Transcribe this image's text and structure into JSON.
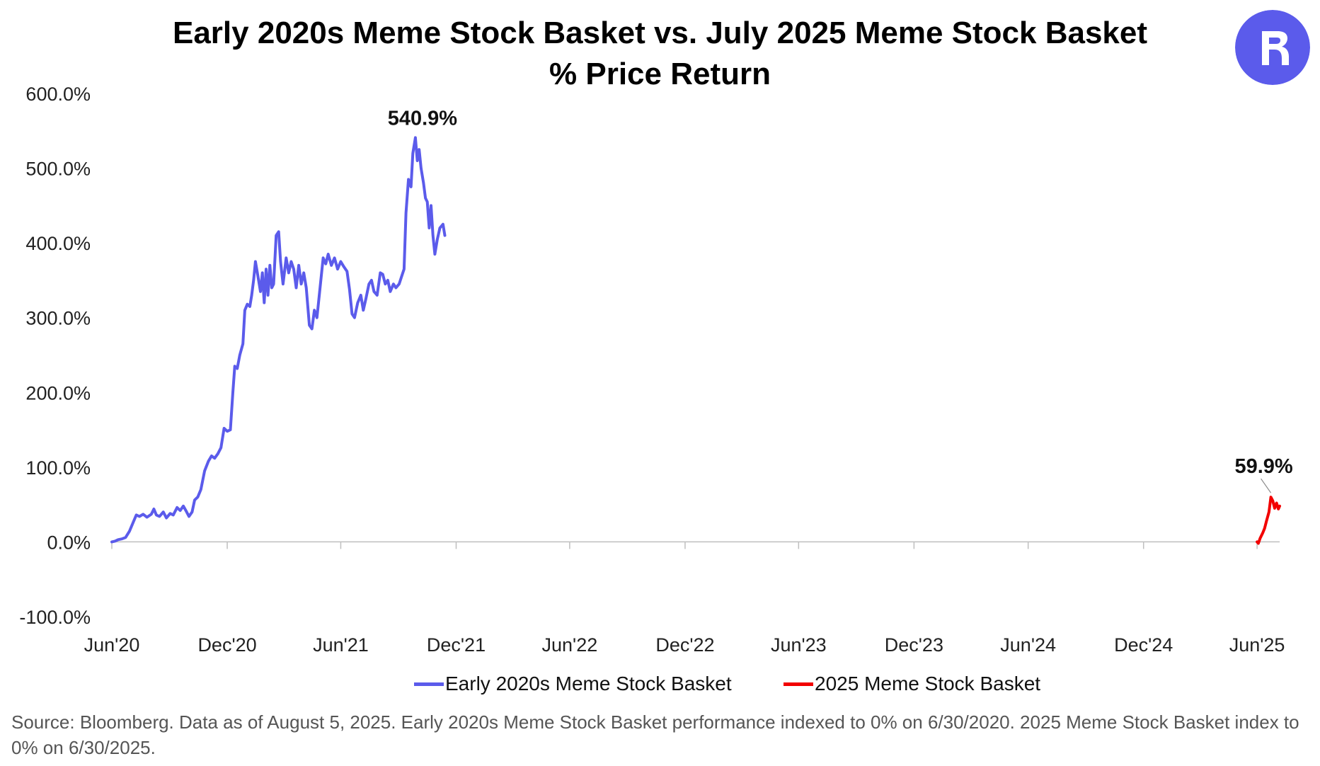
{
  "chart_data": {
    "type": "line",
    "title": "Early 2020s Meme Stock Basket vs. July 2025 Meme Stock Basket",
    "subtitle": "% Price Return",
    "xlabel": "",
    "ylabel": "",
    "x_range": [
      "2020-06-30",
      "2025-08-05"
    ],
    "ylim": [
      -100,
      600
    ],
    "yticks": [
      "600.0%",
      "500.0%",
      "400.0%",
      "300.0%",
      "200.0%",
      "100.0%",
      "0.0%",
      "-100.0%"
    ],
    "ytick_values": [
      600,
      500,
      400,
      300,
      200,
      100,
      0,
      -100
    ],
    "xticks": [
      "Jun'20",
      "Dec'20",
      "Jun'21",
      "Dec'21",
      "Jun'22",
      "Dec'22",
      "Jun'23",
      "Dec'23",
      "Jun'24",
      "Dec'24",
      "Jun'25"
    ],
    "xtick_dates": [
      "2020-06-30",
      "2020-12-31",
      "2021-06-30",
      "2021-12-31",
      "2022-06-30",
      "2022-12-31",
      "2023-06-30",
      "2023-12-31",
      "2024-06-30",
      "2024-12-31",
      "2025-06-30"
    ],
    "grid": false,
    "legend_position": "bottom",
    "series": [
      {
        "name": "Early 2020s Meme Stock Basket",
        "color": "#5B5BEB",
        "points": [
          [
            "2020-06-30",
            0
          ],
          [
            "2020-07-05",
            1
          ],
          [
            "2020-07-10",
            3
          ],
          [
            "2020-07-16",
            4
          ],
          [
            "2020-07-22",
            6
          ],
          [
            "2020-07-28",
            14
          ],
          [
            "2020-08-04",
            28
          ],
          [
            "2020-08-08",
            36
          ],
          [
            "2020-08-13",
            34
          ],
          [
            "2020-08-19",
            37
          ],
          [
            "2020-08-25",
            33
          ],
          [
            "2020-09-01",
            37
          ],
          [
            "2020-09-05",
            44
          ],
          [
            "2020-09-09",
            36
          ],
          [
            "2020-09-14",
            34
          ],
          [
            "2020-09-20",
            40
          ],
          [
            "2020-09-25",
            32
          ],
          [
            "2020-10-01",
            38
          ],
          [
            "2020-10-06",
            36
          ],
          [
            "2020-10-12",
            46
          ],
          [
            "2020-10-17",
            42
          ],
          [
            "2020-10-22",
            48
          ],
          [
            "2020-10-26",
            42
          ],
          [
            "2020-10-31",
            34
          ],
          [
            "2020-11-05",
            40
          ],
          [
            "2020-11-09",
            56
          ],
          [
            "2020-11-14",
            60
          ],
          [
            "2020-11-19",
            70
          ],
          [
            "2020-11-25",
            95
          ],
          [
            "2020-12-01",
            108
          ],
          [
            "2020-12-06",
            115
          ],
          [
            "2020-12-11",
            112
          ],
          [
            "2020-12-16",
            118
          ],
          [
            "2020-12-21",
            126
          ],
          [
            "2020-12-26",
            152
          ],
          [
            "2020-12-31",
            148
          ],
          [
            "2021-01-05",
            150
          ],
          [
            "2021-01-09",
            200
          ],
          [
            "2021-01-12",
            235
          ],
          [
            "2021-01-16",
            232
          ],
          [
            "2021-01-20",
            250
          ],
          [
            "2021-01-25",
            265
          ],
          [
            "2021-01-28",
            310
          ],
          [
            "2021-02-01",
            318
          ],
          [
            "2021-02-05",
            315
          ],
          [
            "2021-02-08",
            330
          ],
          [
            "2021-02-11",
            350
          ],
          [
            "2021-02-14",
            375
          ],
          [
            "2021-02-18",
            355
          ],
          [
            "2021-02-22",
            335
          ],
          [
            "2021-02-25",
            360
          ],
          [
            "2021-02-28",
            320
          ],
          [
            "2021-03-03",
            365
          ],
          [
            "2021-03-06",
            330
          ],
          [
            "2021-03-09",
            370
          ],
          [
            "2021-03-12",
            340
          ],
          [
            "2021-03-15",
            345
          ],
          [
            "2021-03-19",
            410
          ],
          [
            "2021-03-23",
            415
          ],
          [
            "2021-03-26",
            375
          ],
          [
            "2021-03-30",
            345
          ],
          [
            "2021-04-04",
            380
          ],
          [
            "2021-04-08",
            360
          ],
          [
            "2021-04-12",
            375
          ],
          [
            "2021-04-16",
            365
          ],
          [
            "2021-04-20",
            340
          ],
          [
            "2021-04-24",
            370
          ],
          [
            "2021-04-28",
            345
          ],
          [
            "2021-05-02",
            360
          ],
          [
            "2021-05-06",
            340
          ],
          [
            "2021-05-11",
            290
          ],
          [
            "2021-05-15",
            285
          ],
          [
            "2021-05-19",
            310
          ],
          [
            "2021-05-23",
            300
          ],
          [
            "2021-05-28",
            340
          ],
          [
            "2021-06-02",
            380
          ],
          [
            "2021-06-06",
            372
          ],
          [
            "2021-06-10",
            385
          ],
          [
            "2021-06-15",
            370
          ],
          [
            "2021-06-20",
            380
          ],
          [
            "2021-06-25",
            365
          ],
          [
            "2021-06-30",
            375
          ],
          [
            "2021-07-05",
            368
          ],
          [
            "2021-07-10",
            362
          ],
          [
            "2021-07-14",
            338
          ],
          [
            "2021-07-18",
            305
          ],
          [
            "2021-07-22",
            300
          ],
          [
            "2021-07-27",
            320
          ],
          [
            "2021-08-01",
            330
          ],
          [
            "2021-08-05",
            310
          ],
          [
            "2021-08-09",
            325
          ],
          [
            "2021-08-14",
            345
          ],
          [
            "2021-08-18",
            350
          ],
          [
            "2021-08-22",
            335
          ],
          [
            "2021-08-27",
            330
          ],
          [
            "2021-09-01",
            360
          ],
          [
            "2021-09-05",
            358
          ],
          [
            "2021-09-09",
            345
          ],
          [
            "2021-09-13",
            350
          ],
          [
            "2021-09-17",
            335
          ],
          [
            "2021-09-22",
            345
          ],
          [
            "2021-09-26",
            340
          ],
          [
            "2021-10-01",
            345
          ],
          [
            "2021-10-05",
            355
          ],
          [
            "2021-10-09",
            365
          ],
          [
            "2021-10-12",
            440
          ],
          [
            "2021-10-16",
            485
          ],
          [
            "2021-10-20",
            475
          ],
          [
            "2021-10-23",
            520
          ],
          [
            "2021-10-27",
            540.9
          ],
          [
            "2021-10-30",
            510
          ],
          [
            "2021-11-02",
            525
          ],
          [
            "2021-11-05",
            500
          ],
          [
            "2021-11-09",
            480
          ],
          [
            "2021-11-12",
            460
          ],
          [
            "2021-11-15",
            455
          ],
          [
            "2021-11-18",
            420
          ],
          [
            "2021-11-21",
            450
          ],
          [
            "2021-11-24",
            410
          ],
          [
            "2021-11-27",
            385
          ],
          [
            "2021-12-01",
            405
          ],
          [
            "2021-12-05",
            420
          ],
          [
            "2021-12-10",
            425
          ],
          [
            "2021-12-13",
            410
          ]
        ]
      },
      {
        "name": "2025 Meme Stock Basket",
        "color": "#F20000",
        "points": [
          [
            "2025-06-30",
            0
          ],
          [
            "2025-07-02",
            -2
          ],
          [
            "2025-07-05",
            5
          ],
          [
            "2025-07-09",
            12
          ],
          [
            "2025-07-12",
            18
          ],
          [
            "2025-07-15",
            28
          ],
          [
            "2025-07-19",
            40
          ],
          [
            "2025-07-22",
            59.9
          ],
          [
            "2025-07-25",
            55
          ],
          [
            "2025-07-28",
            45
          ],
          [
            "2025-07-31",
            52
          ],
          [
            "2025-08-03",
            44
          ],
          [
            "2025-08-05",
            48
          ]
        ]
      }
    ],
    "annotations": [
      {
        "text": "540.9%",
        "date": "2021-10-27",
        "value": 540.9,
        "series": 0
      },
      {
        "text": "59.9%",
        "date": "2025-07-22",
        "value": 59.9,
        "series": 1
      }
    ]
  },
  "source_note": "Source: Bloomberg. Data as of August 5, 2025. Early 2020s Meme Stock Basket performance indexed to 0% on 6/30/2020. 2025 Meme Stock Basket index to 0% on 6/30/2025.",
  "logo": {
    "icon": "robinhood-style-r-logo",
    "color": "#5B5BEB"
  }
}
